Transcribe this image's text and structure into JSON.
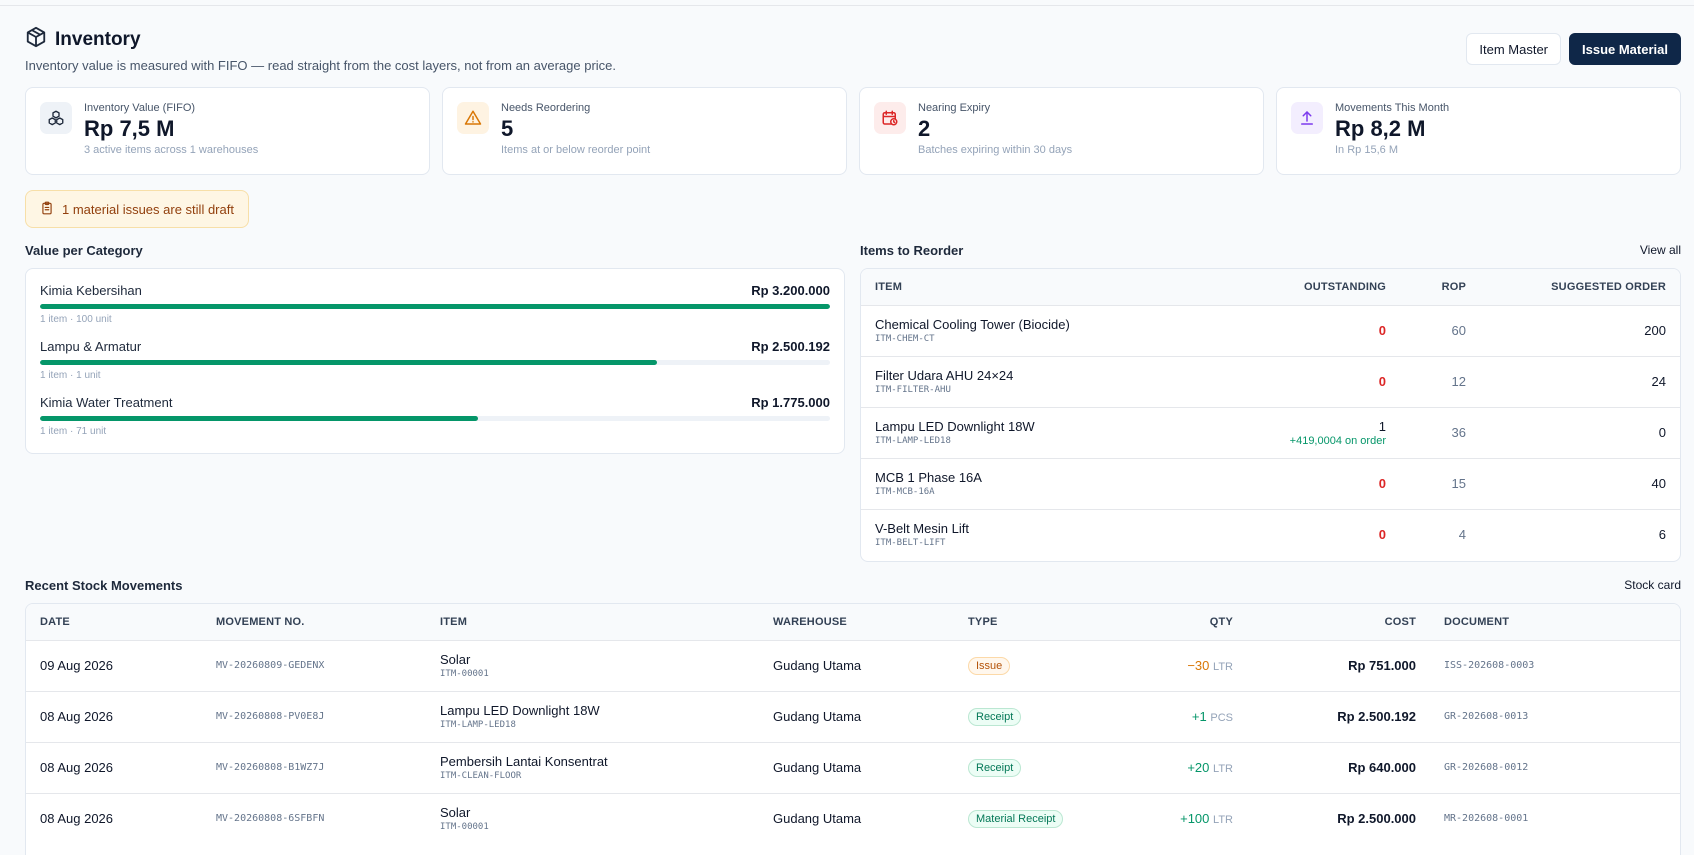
{
  "header": {
    "title": "Inventory",
    "subtitle": "Inventory value is measured with FIFO — read straight from the cost layers, not from an average price.",
    "item_master_label": "Item Master",
    "issue_material_label": "Issue Material"
  },
  "stats": [
    {
      "label": "Inventory Value (FIFO)",
      "value": "Rp 7,5 M",
      "sub": "3 active items across 1 warehouses",
      "icon": "cubes-icon",
      "color": "#1e293b"
    },
    {
      "label": "Needs Reordering",
      "value": "5",
      "sub": "Items at or below reorder point",
      "icon": "warning-icon",
      "color": "#d97706"
    },
    {
      "label": "Nearing Expiry",
      "value": "2",
      "sub": "Batches expiring within 30 days",
      "icon": "calendar-clock-icon",
      "color": "#dc2626"
    },
    {
      "label": "Movements This Month",
      "value": "Rp 8,2 M",
      "sub": "In Rp 15,6 M",
      "icon": "upload-arrow-icon",
      "color": "#7c3aed"
    }
  ],
  "notice": {
    "text": "1 material issues are still draft",
    "icon": "clipboard-icon"
  },
  "categories": {
    "title": "Value per Category",
    "items": [
      {
        "name": "Kimia Kebersihan",
        "value": "Rp 3.200.000",
        "meta": "1 item · 100 unit",
        "share": 1.0
      },
      {
        "name": "Lampu & Armatur",
        "value": "Rp 2.500.192",
        "meta": "1 item · 1 unit",
        "share": 0.781
      },
      {
        "name": "Kimia Water Treatment",
        "value": "Rp 1.775.000",
        "meta": "1 item · 71 unit",
        "share": 0.555
      }
    ]
  },
  "reorder": {
    "title": "Items to Reorder",
    "view_all": "View all",
    "columns": {
      "item": "ITEM",
      "outstanding": "OUTSTANDING",
      "rop": "ROP",
      "suggested": "SUGGESTED ORDER"
    },
    "rows": [
      {
        "name": "Chemical Cooling Tower (Biocide)",
        "code": "ITM-CHEM-CT",
        "outstanding": "0",
        "on_order": "",
        "rop": "60",
        "suggested": "200"
      },
      {
        "name": "Filter Udara AHU 24×24",
        "code": "ITM-FILTER-AHU",
        "outstanding": "0",
        "on_order": "",
        "rop": "12",
        "suggested": "24"
      },
      {
        "name": "Lampu LED Downlight 18W",
        "code": "ITM-LAMP-LED18",
        "outstanding": "1",
        "on_order": "+419,0004 on order",
        "rop": "36",
        "suggested": "0"
      },
      {
        "name": "MCB 1 Phase 16A",
        "code": "ITM-MCB-16A",
        "outstanding": "0",
        "on_order": "",
        "rop": "15",
        "suggested": "40"
      },
      {
        "name": "V-Belt Mesin Lift",
        "code": "ITM-BELT-LIFT",
        "outstanding": "0",
        "on_order": "",
        "rop": "4",
        "suggested": "6"
      }
    ]
  },
  "movements": {
    "title": "Recent Stock Movements",
    "link": "Stock card",
    "columns": {
      "date": "DATE",
      "movement_no": "MOVEMENT NO.",
      "item": "ITEM",
      "warehouse": "WAREHOUSE",
      "type": "TYPE",
      "qty": "QTY",
      "cost": "COST",
      "document": "DOCUMENT"
    },
    "rows": [
      {
        "date": "09 Aug 2026",
        "movement_no": "MV-20260809-GEDENX",
        "item": "Solar",
        "code": "ITM-00001",
        "warehouse": "Gudang Utama",
        "type": "Issue",
        "qty": "−30",
        "unit": "LTR",
        "cost": "Rp 751.000",
        "document": "ISS-202608-0003"
      },
      {
        "date": "08 Aug 2026",
        "movement_no": "MV-20260808-PV0E8J",
        "item": "Lampu LED Downlight 18W",
        "code": "ITM-LAMP-LED18",
        "warehouse": "Gudang Utama",
        "type": "Receipt",
        "qty": "+1",
        "unit": "PCS",
        "cost": "Rp 2.500.192",
        "document": "GR-202608-0013"
      },
      {
        "date": "08 Aug 2026",
        "movement_no": "MV-20260808-B1WZ7J",
        "item": "Pembersih Lantai Konsentrat",
        "code": "ITM-CLEAN-FLOOR",
        "warehouse": "Gudang Utama",
        "type": "Receipt",
        "qty": "+20",
        "unit": "LTR",
        "cost": "Rp 640.000",
        "document": "GR-202608-0012"
      },
      {
        "date": "08 Aug 2026",
        "movement_no": "MV-20260808-6SFBFN",
        "item": "Solar",
        "code": "ITM-00001",
        "warehouse": "Gudang Utama",
        "type": "Material Receipt",
        "qty": "+100",
        "unit": "LTR",
        "cost": "Rp 2.500.000",
        "document": "MR-202608-0001"
      }
    ]
  }
}
